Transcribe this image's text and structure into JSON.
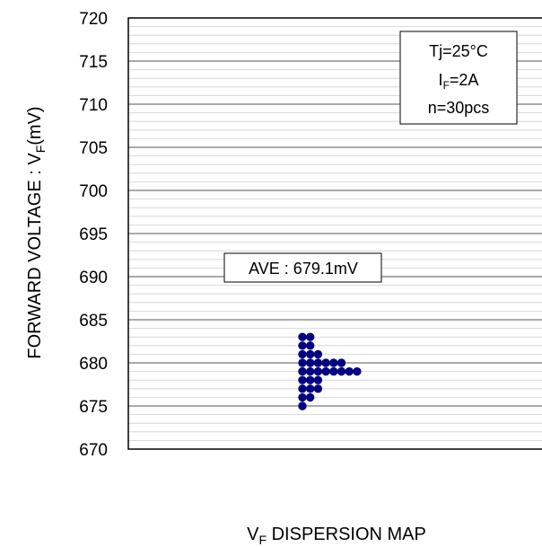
{
  "chart_data": {
    "type": "scatter",
    "title": "",
    "ylabel_main": "FORWARD VOLTAGE : V",
    "ylabel_sub": "F",
    "ylabel_tail": "(mV)",
    "xlabel_main": "V",
    "xlabel_sub": "F",
    "xlabel_tail": " DISPERSION MAP",
    "ylim": [
      670,
      720
    ],
    "y_ticks": [
      "670",
      "675",
      "680",
      "685",
      "690",
      "695",
      "700",
      "705",
      "710",
      "715",
      "720"
    ],
    "grid": true,
    "conditions": {
      "line1": "Tj=25°C",
      "line2_main": "I",
      "line2_sub": "F",
      "line2_tail": "=2A",
      "line3": "n=30pcs"
    },
    "average_label": "AVE : 679.1mV",
    "marker_color": "#000080",
    "points_by_value": [
      {
        "y": 683,
        "count": 2
      },
      {
        "y": 682,
        "count": 2
      },
      {
        "y": 681,
        "count": 3
      },
      {
        "y": 680,
        "count": 6
      },
      {
        "y": 679,
        "count": 8
      },
      {
        "y": 678,
        "count": 3
      },
      {
        "y": 677,
        "count": 3
      },
      {
        "y": 676,
        "count": 2
      },
      {
        "y": 675,
        "count": 1
      }
    ]
  }
}
